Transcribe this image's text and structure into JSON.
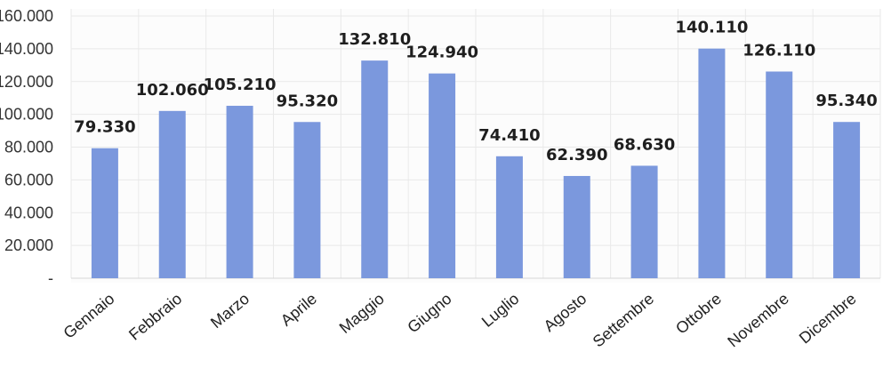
{
  "chart_data": {
    "type": "bar",
    "categories": [
      "Gennaio",
      "Febbraio",
      "Marzo",
      "Aprile",
      "Maggio",
      "Giugno",
      "Luglio",
      "Agosto",
      "Settembre",
      "Ottobre",
      "Novembre",
      "Dicembre"
    ],
    "values": [
      79330,
      102060,
      105210,
      95320,
      132810,
      124940,
      74410,
      62390,
      68630,
      140110,
      126110,
      95340
    ],
    "data_labels": [
      "79.330",
      "102.060",
      "105.210",
      "95.320",
      "132.810",
      "124.940",
      "74.410",
      "62.390",
      "68.630",
      "140.110",
      "126.110",
      "95.340"
    ],
    "ylim": [
      0,
      160000
    ],
    "yticks": [
      0,
      20000,
      40000,
      60000,
      80000,
      100000,
      120000,
      140000,
      160000
    ],
    "ytick_labels": [
      "-",
      "20.000",
      "40.000",
      "60.000",
      "80.000",
      "100.000",
      "120.000",
      "140.000",
      "160.000"
    ],
    "grid": true,
    "bar_color": "#7b98dd",
    "title": "",
    "xlabel": "",
    "ylabel": ""
  }
}
